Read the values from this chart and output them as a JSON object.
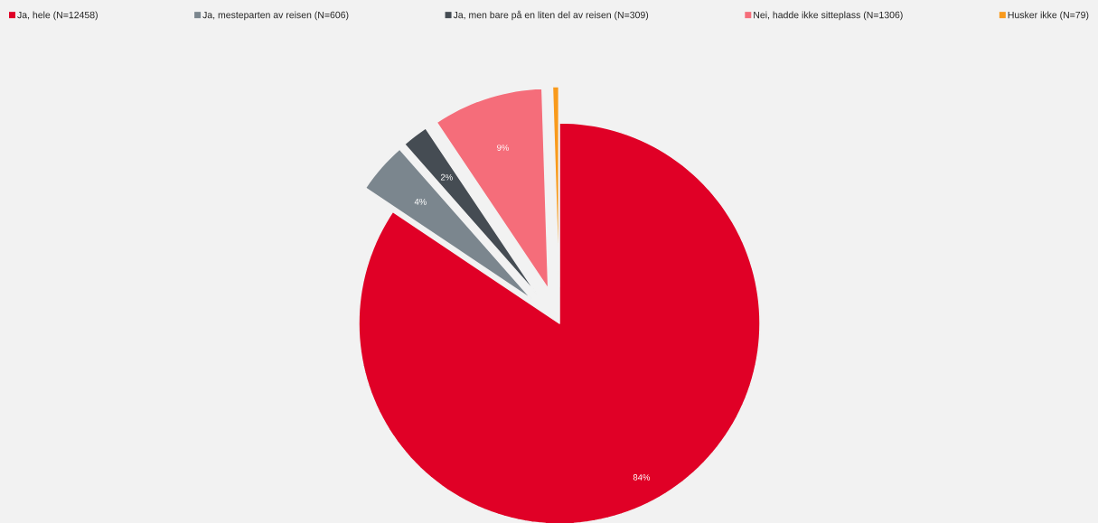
{
  "chart_data": {
    "type": "pie",
    "categories": [
      "Ja, hele (N=12458)",
      "Ja, mesteparten av reisen (N=606)",
      "Ja, men bare på en liten del av reisen (N=309)",
      "Nei, hadde ikke sitteplass (N=1306)",
      "Husker ikke (N=79)"
    ],
    "values": [
      84.4,
      4.1,
      2.1,
      8.9,
      0.5
    ],
    "colors": [
      "#e00026",
      "#7b868e",
      "#454c53",
      "#f56d7a",
      "#f99a1c"
    ],
    "value_labels": [
      "84%",
      "4%",
      "2%",
      "9%",
      null
    ],
    "legend": "top"
  }
}
